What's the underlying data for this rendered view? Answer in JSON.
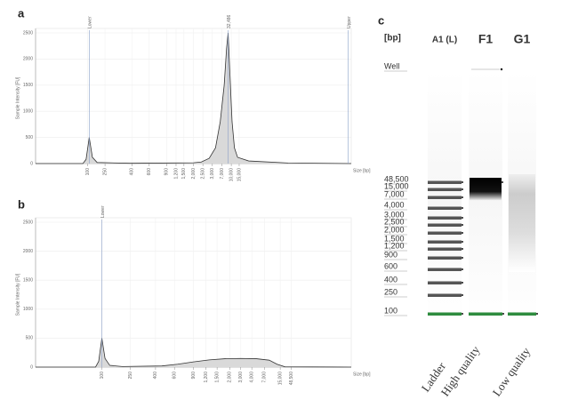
{
  "chart_data": [
    {
      "type": "area",
      "panel": "a",
      "y_label": "Sample Intensity [FU]",
      "x_label": "Size [bp]",
      "color": "#d9d9d9",
      "line_color": "#333333",
      "grid": true,
      "xlim": [
        0,
        20
      ],
      "ylim": [
        0,
        2500
      ],
      "yticks": [
        0,
        500,
        1000,
        1500,
        2000,
        2500
      ],
      "xticks": [
        {
          "value": 3.3,
          "label": "100"
        },
        {
          "value": 4.4,
          "label": "250"
        },
        {
          "value": 6.1,
          "label": "400"
        },
        {
          "value": 7.2,
          "label": "600"
        },
        {
          "value": 8.3,
          "label": "900"
        },
        {
          "value": 8.9,
          "label": "1,200"
        },
        {
          "value": 9.4,
          "label": "1,500"
        },
        {
          "value": 10.0,
          "label": "2,000"
        },
        {
          "value": 10.6,
          "label": "2,500"
        },
        {
          "value": 11.2,
          "label": "3,000"
        },
        {
          "value": 11.8,
          "label": "7,000"
        },
        {
          "value": 12.4,
          "label": "10,000"
        },
        {
          "value": 12.9,
          "label": "15,000"
        }
      ],
      "markers": [
        {
          "label": "Lower",
          "x": 3.4
        },
        {
          "label": "32,486",
          "x": 12.2
        },
        {
          "label": "Upper",
          "x": 19.8
        }
      ],
      "x": [
        0,
        3.0,
        3.2,
        3.4,
        3.6,
        3.9,
        6,
        10,
        10.5,
        11.0,
        11.4,
        11.7,
        11.95,
        12.1,
        12.2,
        12.3,
        12.45,
        12.6,
        12.8,
        13.5,
        16,
        20
      ],
      "values": [
        0,
        0,
        80,
        500,
        120,
        20,
        5,
        15,
        30,
        100,
        300,
        800,
        1500,
        2200,
        2500,
        1800,
        800,
        300,
        120,
        50,
        10,
        0
      ]
    },
    {
      "type": "area",
      "panel": "b",
      "y_label": "Sample Intensity [FU]",
      "x_label": "Size [bp]",
      "color": "#d9d9d9",
      "line_color": "#333333",
      "grid": true,
      "xlim": [
        0,
        20
      ],
      "ylim": [
        0,
        2500
      ],
      "yticks": [
        0,
        500,
        1000,
        1500,
        2000,
        2500
      ],
      "xticks": [
        {
          "value": 4.2,
          "label": "100"
        },
        {
          "value": 6.0,
          "label": "250"
        },
        {
          "value": 7.6,
          "label": "400"
        },
        {
          "value": 8.8,
          "label": "600"
        },
        {
          "value": 10.0,
          "label": "900"
        },
        {
          "value": 10.8,
          "label": "1,200"
        },
        {
          "value": 11.5,
          "label": "1,500"
        },
        {
          "value": 12.3,
          "label": "2,000"
        },
        {
          "value": 13.0,
          "label": "3,000"
        },
        {
          "value": 13.7,
          "label": "4,000"
        },
        {
          "value": 14.5,
          "label": "7,000"
        },
        {
          "value": 15.5,
          "label": "15,000"
        },
        {
          "value": 16.2,
          "label": "48,500"
        }
      ],
      "markers": [
        {
          "label": "Lower",
          "x": 4.2
        }
      ],
      "x": [
        0,
        3.8,
        4.0,
        4.2,
        4.4,
        4.7,
        5.5,
        8,
        9,
        10,
        11,
        12,
        13,
        14,
        14.8,
        15.3,
        15.8,
        20
      ],
      "values": [
        0,
        0,
        100,
        500,
        150,
        30,
        10,
        20,
        50,
        90,
        125,
        145,
        150,
        145,
        120,
        50,
        5,
        0
      ]
    },
    {
      "type": "gel",
      "panel": "c",
      "unit": "[bp]",
      "lanes": [
        "A1 (L)",
        "F1",
        "G1"
      ],
      "lane_titles": [
        "Ladder",
        "High quality",
        "Low quality"
      ],
      "ladder": [
        "Well",
        "48,500",
        "15,000",
        "7,000",
        "4,000",
        "3,000",
        "2,500",
        "2,000",
        "1,500",
        "1,200",
        "900",
        "600",
        "400",
        "250",
        "100"
      ]
    }
  ]
}
